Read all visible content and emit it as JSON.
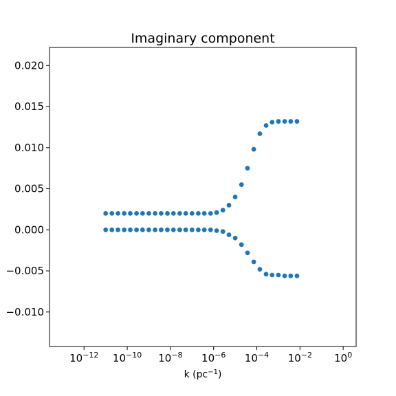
{
  "chart_data": {
    "type": "scatter",
    "title": "Imaginary component",
    "xlabel": "k (pc⁻¹)",
    "ylabel": "",
    "x_scale": "log",
    "xlim_log10": [
      -13.6,
      0.6
    ],
    "ylim": [
      -0.0142,
      0.0222
    ],
    "grid": false,
    "legend": "none",
    "color": "#1f77b4",
    "xticks": [
      {
        "exp": -12,
        "base": "10",
        "sup": "−12"
      },
      {
        "exp": -10,
        "base": "10",
        "sup": "−10"
      },
      {
        "exp": -8,
        "base": "10",
        "sup": "−8"
      },
      {
        "exp": -6,
        "base": "10",
        "sup": "−6"
      },
      {
        "exp": -4,
        "base": "10",
        "sup": "−4"
      },
      {
        "exp": -2,
        "base": "10",
        "sup": "−2"
      },
      {
        "exp": 0,
        "base": "10",
        "sup": "0"
      }
    ],
    "yticks": [
      {
        "value": -0.01,
        "label": "−0.010"
      },
      {
        "value": -0.005,
        "label": "−0.005"
      },
      {
        "value": 0.0,
        "label": "0.000"
      },
      {
        "value": 0.005,
        "label": "0.005"
      },
      {
        "value": 0.01,
        "label": "0.010"
      },
      {
        "value": 0.015,
        "label": "0.015"
      },
      {
        "value": 0.02,
        "label": "0.020"
      }
    ],
    "log10_k": [
      -11.0,
      -10.71,
      -10.43,
      -10.14,
      -9.86,
      -9.57,
      -9.29,
      -9.0,
      -8.71,
      -8.43,
      -8.14,
      -7.86,
      -7.57,
      -7.29,
      -7.0,
      -6.71,
      -6.43,
      -6.14,
      -5.86,
      -5.57,
      -5.29,
      -5.0,
      -4.71,
      -4.43,
      -4.14,
      -3.86,
      -3.57,
      -3.29,
      -3.0,
      -2.71,
      -2.43,
      -2.14
    ],
    "series": [
      {
        "values": [
          0.002,
          0.002,
          0.002,
          0.002,
          0.002,
          0.002,
          0.002,
          0.002,
          0.002,
          0.002,
          0.002,
          0.002,
          0.002,
          0.002,
          0.002,
          0.002,
          0.002,
          0.002,
          0.0021,
          0.0024,
          0.003,
          0.004,
          0.0055,
          0.0075,
          0.0098,
          0.0117,
          0.0127,
          0.0131,
          0.0132,
          0.0132,
          0.0132,
          0.0132
        ]
      },
      {
        "values": [
          0.0,
          0.0,
          0.0,
          0.0,
          0.0,
          0.0,
          0.0,
          0.0,
          0.0,
          0.0,
          0.0,
          0.0,
          0.0,
          0.0,
          0.0,
          0.0,
          0.0,
          0.0,
          -0.0001,
          -0.0002,
          -0.0006,
          -0.001,
          -0.0018,
          -0.0028,
          -0.0039,
          -0.0048,
          -0.0054,
          -0.0055,
          -0.0055,
          -0.0056,
          -0.0056,
          -0.0056
        ]
      }
    ]
  }
}
